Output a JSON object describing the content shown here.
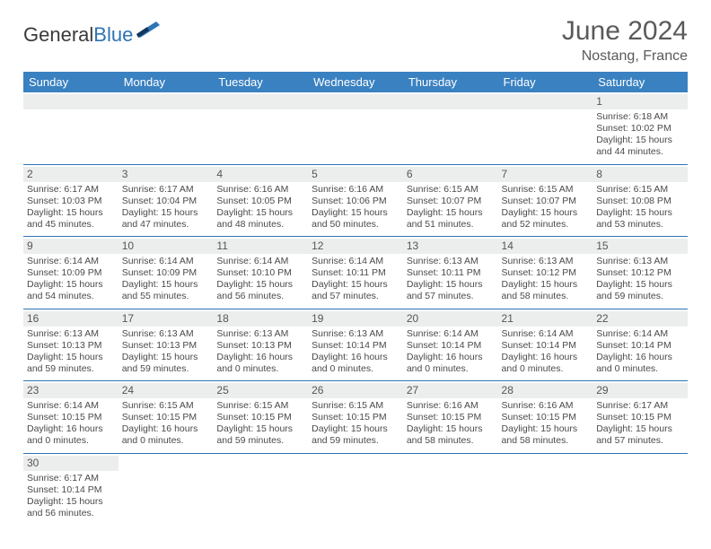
{
  "brand": {
    "part1": "General",
    "part2": "Blue"
  },
  "title": "June 2024",
  "location": "Nostang, France",
  "colors": {
    "header_bg": "#3a81c1",
    "header_text": "#ffffff",
    "cell_border": "#2e74b5",
    "daynum_bg": "#eceeee",
    "text": "#4a4a4a",
    "title_text": "#5a5a5a"
  },
  "dayHeaders": [
    "Sunday",
    "Monday",
    "Tuesday",
    "Wednesday",
    "Thursday",
    "Friday",
    "Saturday"
  ],
  "weeks": [
    [
      null,
      null,
      null,
      null,
      null,
      null,
      {
        "n": "1",
        "sr": "Sunrise: 6:18 AM",
        "ss": "Sunset: 10:02 PM",
        "dl": "Daylight: 15 hours and 44 minutes."
      }
    ],
    [
      {
        "n": "2",
        "sr": "Sunrise: 6:17 AM",
        "ss": "Sunset: 10:03 PM",
        "dl": "Daylight: 15 hours and 45 minutes."
      },
      {
        "n": "3",
        "sr": "Sunrise: 6:17 AM",
        "ss": "Sunset: 10:04 PM",
        "dl": "Daylight: 15 hours and 47 minutes."
      },
      {
        "n": "4",
        "sr": "Sunrise: 6:16 AM",
        "ss": "Sunset: 10:05 PM",
        "dl": "Daylight: 15 hours and 48 minutes."
      },
      {
        "n": "5",
        "sr": "Sunrise: 6:16 AM",
        "ss": "Sunset: 10:06 PM",
        "dl": "Daylight: 15 hours and 50 minutes."
      },
      {
        "n": "6",
        "sr": "Sunrise: 6:15 AM",
        "ss": "Sunset: 10:07 PM",
        "dl": "Daylight: 15 hours and 51 minutes."
      },
      {
        "n": "7",
        "sr": "Sunrise: 6:15 AM",
        "ss": "Sunset: 10:07 PM",
        "dl": "Daylight: 15 hours and 52 minutes."
      },
      {
        "n": "8",
        "sr": "Sunrise: 6:15 AM",
        "ss": "Sunset: 10:08 PM",
        "dl": "Daylight: 15 hours and 53 minutes."
      }
    ],
    [
      {
        "n": "9",
        "sr": "Sunrise: 6:14 AM",
        "ss": "Sunset: 10:09 PM",
        "dl": "Daylight: 15 hours and 54 minutes."
      },
      {
        "n": "10",
        "sr": "Sunrise: 6:14 AM",
        "ss": "Sunset: 10:09 PM",
        "dl": "Daylight: 15 hours and 55 minutes."
      },
      {
        "n": "11",
        "sr": "Sunrise: 6:14 AM",
        "ss": "Sunset: 10:10 PM",
        "dl": "Daylight: 15 hours and 56 minutes."
      },
      {
        "n": "12",
        "sr": "Sunrise: 6:14 AM",
        "ss": "Sunset: 10:11 PM",
        "dl": "Daylight: 15 hours and 57 minutes."
      },
      {
        "n": "13",
        "sr": "Sunrise: 6:13 AM",
        "ss": "Sunset: 10:11 PM",
        "dl": "Daylight: 15 hours and 57 minutes."
      },
      {
        "n": "14",
        "sr": "Sunrise: 6:13 AM",
        "ss": "Sunset: 10:12 PM",
        "dl": "Daylight: 15 hours and 58 minutes."
      },
      {
        "n": "15",
        "sr": "Sunrise: 6:13 AM",
        "ss": "Sunset: 10:12 PM",
        "dl": "Daylight: 15 hours and 59 minutes."
      }
    ],
    [
      {
        "n": "16",
        "sr": "Sunrise: 6:13 AM",
        "ss": "Sunset: 10:13 PM",
        "dl": "Daylight: 15 hours and 59 minutes."
      },
      {
        "n": "17",
        "sr": "Sunrise: 6:13 AM",
        "ss": "Sunset: 10:13 PM",
        "dl": "Daylight: 15 hours and 59 minutes."
      },
      {
        "n": "18",
        "sr": "Sunrise: 6:13 AM",
        "ss": "Sunset: 10:13 PM",
        "dl": "Daylight: 16 hours and 0 minutes."
      },
      {
        "n": "19",
        "sr": "Sunrise: 6:13 AM",
        "ss": "Sunset: 10:14 PM",
        "dl": "Daylight: 16 hours and 0 minutes."
      },
      {
        "n": "20",
        "sr": "Sunrise: 6:14 AM",
        "ss": "Sunset: 10:14 PM",
        "dl": "Daylight: 16 hours and 0 minutes."
      },
      {
        "n": "21",
        "sr": "Sunrise: 6:14 AM",
        "ss": "Sunset: 10:14 PM",
        "dl": "Daylight: 16 hours and 0 minutes."
      },
      {
        "n": "22",
        "sr": "Sunrise: 6:14 AM",
        "ss": "Sunset: 10:14 PM",
        "dl": "Daylight: 16 hours and 0 minutes."
      }
    ],
    [
      {
        "n": "23",
        "sr": "Sunrise: 6:14 AM",
        "ss": "Sunset: 10:15 PM",
        "dl": "Daylight: 16 hours and 0 minutes."
      },
      {
        "n": "24",
        "sr": "Sunrise: 6:15 AM",
        "ss": "Sunset: 10:15 PM",
        "dl": "Daylight: 16 hours and 0 minutes."
      },
      {
        "n": "25",
        "sr": "Sunrise: 6:15 AM",
        "ss": "Sunset: 10:15 PM",
        "dl": "Daylight: 15 hours and 59 minutes."
      },
      {
        "n": "26",
        "sr": "Sunrise: 6:15 AM",
        "ss": "Sunset: 10:15 PM",
        "dl": "Daylight: 15 hours and 59 minutes."
      },
      {
        "n": "27",
        "sr": "Sunrise: 6:16 AM",
        "ss": "Sunset: 10:15 PM",
        "dl": "Daylight: 15 hours and 58 minutes."
      },
      {
        "n": "28",
        "sr": "Sunrise: 6:16 AM",
        "ss": "Sunset: 10:15 PM",
        "dl": "Daylight: 15 hours and 58 minutes."
      },
      {
        "n": "29",
        "sr": "Sunrise: 6:17 AM",
        "ss": "Sunset: 10:15 PM",
        "dl": "Daylight: 15 hours and 57 minutes."
      }
    ],
    [
      {
        "n": "30",
        "sr": "Sunrise: 6:17 AM",
        "ss": "Sunset: 10:14 PM",
        "dl": "Daylight: 15 hours and 56 minutes."
      },
      null,
      null,
      null,
      null,
      null,
      null
    ]
  ]
}
